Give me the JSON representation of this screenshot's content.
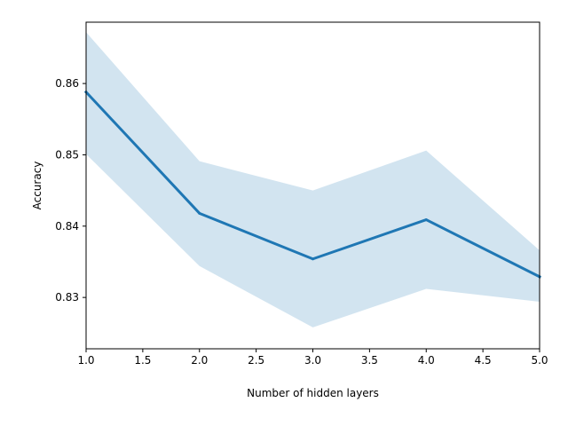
{
  "chart_data": {
    "type": "line",
    "title": "",
    "xlabel": "Number of hidden layers",
    "ylabel": "Accuracy",
    "xlim": [
      1.0,
      5.0
    ],
    "ylim": [
      0.8228,
      0.8686
    ],
    "x_ticks": [
      "1.0",
      "1.5",
      "2.0",
      "2.5",
      "3.0",
      "3.5",
      "4.0",
      "4.5",
      "5.0"
    ],
    "y_ticks": [
      "0.83",
      "0.84",
      "0.85",
      "0.86"
    ],
    "grid": false,
    "legend": "none",
    "series": [
      {
        "x": [
          1,
          2,
          3,
          4,
          5
        ],
        "values": [
          0.8588,
          0.8418,
          0.8354,
          0.8409,
          0.8329
        ],
        "lower": [
          0.8501,
          0.8344,
          0.8258,
          0.8312,
          0.8294
        ],
        "upper": [
          0.8672,
          0.8491,
          0.845,
          0.8506,
          0.8366
        ],
        "color": "#1f77b4",
        "band_color": "#1f77b4"
      }
    ]
  }
}
